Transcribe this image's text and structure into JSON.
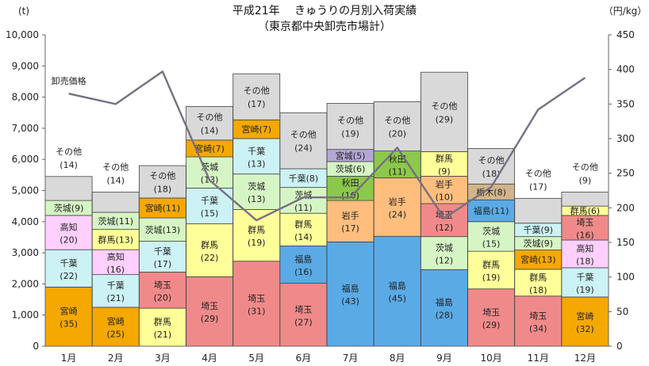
{
  "chart_data": {
    "type": "bar",
    "stacked": true,
    "title": "平成21年　 きゅうりの月別入荷実績",
    "subtitle": "（東京都中央卸売市場計）",
    "ylabel_left": "(t)",
    "ylabel_right": "（円/kg）",
    "ylim_left": [
      0,
      10000
    ],
    "ylim_right": [
      0,
      450
    ],
    "yticks_left": [
      "0",
      "1,000",
      "2,000",
      "3,000",
      "4,000",
      "5,000",
      "6,000",
      "7,000",
      "8,000",
      "9,000",
      "10,000"
    ],
    "yticks_right": [
      "0",
      "50",
      "100",
      "150",
      "200",
      "250",
      "300",
      "350",
      "400",
      "450"
    ],
    "categories": [
      "1月",
      "2月",
      "3月",
      "4月",
      "5月",
      "6月",
      "7月",
      "8月",
      "9月",
      "10月",
      "11月",
      "12月"
    ],
    "colors": {
      "宮崎": "#f5a800",
      "千葉": "#ccf2f5",
      "高知": "#ffd0ff",
      "茨城": "#d6f5c4",
      "群馬": "#ffff99",
      "埼玉": "#f08a8a",
      "福島": "#5aaae6",
      "岩手": "#ffbe7d",
      "秋田": "#8cc84b",
      "栃木": "#d2b48c",
      "その他": "#d9d9d9"
    },
    "months": [
      {
        "total": 5450,
        "segments": [
          {
            "name": "宮崎",
            "pct": "(35)",
            "value": 1900
          },
          {
            "name": "千葉",
            "pct": "(22)",
            "value": 1200
          },
          {
            "name": "高知",
            "pct": "(20)",
            "value": 1100
          },
          {
            "name": "茨城",
            "pct": "(9)",
            "value": 480
          },
          {
            "name": "その他",
            "pct": "(14)",
            "value": 770
          }
        ]
      },
      {
        "total": 4950,
        "segments": [
          {
            "name": "宮崎",
            "pct": "(25)",
            "value": 1250
          },
          {
            "name": "千葉",
            "pct": "(21)",
            "value": 1050
          },
          {
            "name": "高知",
            "pct": "(16)",
            "value": 800
          },
          {
            "name": "群馬",
            "pct": "(13)",
            "value": 650
          },
          {
            "name": "茨城",
            "pct": "(11)",
            "value": 550
          },
          {
            "name": "その他",
            "pct": "(14)",
            "value": 650
          }
        ]
      },
      {
        "total": 5800,
        "segments": [
          {
            "name": "群馬",
            "pct": "(21)",
            "value": 1220
          },
          {
            "name": "埼玉",
            "pct": "(20)",
            "value": 1160
          },
          {
            "name": "千葉",
            "pct": "(17)",
            "value": 990
          },
          {
            "name": "茨城",
            "pct": "(13)",
            "value": 750
          },
          {
            "name": "宮崎",
            "pct": "(11)",
            "value": 640
          },
          {
            "name": "その他",
            "pct": "(18)",
            "value": 1040
          }
        ]
      },
      {
        "total": 7700,
        "segments": [
          {
            "name": "埼玉",
            "pct": "(29)",
            "value": 2230
          },
          {
            "name": "群馬",
            "pct": "(22)",
            "value": 1700
          },
          {
            "name": "千葉",
            "pct": "(15)",
            "value": 1150
          },
          {
            "name": "茨城",
            "pct": "(13)",
            "value": 1000
          },
          {
            "name": "宮崎",
            "pct": "(7)",
            "value": 540
          },
          {
            "name": "その他",
            "pct": "(14)",
            "value": 1080
          }
        ]
      },
      {
        "total": 8750,
        "segments": [
          {
            "name": "埼玉",
            "pct": "(31)",
            "value": 2730
          },
          {
            "name": "群馬",
            "pct": "(19)",
            "value": 1660
          },
          {
            "name": "茨城",
            "pct": "(13)",
            "value": 1140
          },
          {
            "name": "千葉",
            "pct": "(13)",
            "value": 1140
          },
          {
            "name": "宮崎",
            "pct": "(7)",
            "value": 600
          },
          {
            "name": "その他",
            "pct": "(17)",
            "value": 1480
          }
        ]
      },
      {
        "total": 7500,
        "segments": [
          {
            "name": "埼玉",
            "pct": "(27)",
            "value": 2020
          },
          {
            "name": "福島",
            "pct": "(16)",
            "value": 1200
          },
          {
            "name": "群馬",
            "pct": "(14)",
            "value": 1050
          },
          {
            "name": "茨城",
            "pct": "(11)",
            "value": 830
          },
          {
            "name": "千葉",
            "pct": "(8)",
            "value": 600
          },
          {
            "name": "その他",
            "pct": "(24)",
            "value": 1800
          }
        ]
      },
      {
        "total": 7800,
        "segments": [
          {
            "name": "福島",
            "pct": "(43)",
            "value": 3350
          },
          {
            "name": "岩手",
            "pct": "(17)",
            "value": 1330
          },
          {
            "name": "秋田",
            "pct": "(10)",
            "value": 780
          },
          {
            "name": "茨城",
            "pct": "(6)",
            "value": 470
          },
          {
            "name": "宮城",
            "pct": "(5)",
            "value": 390
          },
          {
            "name": "その他",
            "pct": "(19)",
            "value": 1480
          }
        ]
      },
      {
        "total": 7850,
        "segments": [
          {
            "name": "福島",
            "pct": "(45)",
            "value": 3530
          },
          {
            "name": "岩手",
            "pct": "(24)",
            "value": 1880
          },
          {
            "name": "秋田",
            "pct": "(11)",
            "value": 860
          },
          {
            "name": "その他",
            "pct": "(20)",
            "value": 1580
          }
        ]
      },
      {
        "total": 8800,
        "segments": [
          {
            "name": "福島",
            "pct": "(28)",
            "value": 2460
          },
          {
            "name": "茨城",
            "pct": "(12)",
            "value": 1060
          },
          {
            "name": "埼玉",
            "pct": "(12)",
            "value": 1060
          },
          {
            "name": "岩手",
            "pct": "(10)",
            "value": 880
          },
          {
            "name": "群馬",
            "pct": "(9)",
            "value": 790
          },
          {
            "name": "その他",
            "pct": "(29)",
            "value": 2550
          }
        ]
      },
      {
        "total": 6350,
        "segments": [
          {
            "name": "埼玉",
            "pct": "(29)",
            "value": 1840
          },
          {
            "name": "群馬",
            "pct": "(19)",
            "value": 1210
          },
          {
            "name": "茨城",
            "pct": "(15)",
            "value": 950
          },
          {
            "name": "福島",
            "pct": "(11)",
            "value": 700
          },
          {
            "name": "栃木",
            "pct": "(8)",
            "value": 510
          },
          {
            "name": "その他",
            "pct": "(18)",
            "value": 1140
          }
        ]
      },
      {
        "total": 4750,
        "segments": [
          {
            "name": "埼玉",
            "pct": "(34)",
            "value": 1610
          },
          {
            "name": "群馬",
            "pct": "(18)",
            "value": 860
          },
          {
            "name": "宮崎",
            "pct": "(13)",
            "value": 620
          },
          {
            "name": "茨城",
            "pct": "(9)",
            "value": 430
          },
          {
            "name": "千葉",
            "pct": "(9)",
            "value": 430
          },
          {
            "name": "その他",
            "pct": "(17)",
            "value": 800
          }
        ]
      },
      {
        "total": 4950,
        "segments": [
          {
            "name": "宮崎",
            "pct": "(32)",
            "value": 1580
          },
          {
            "name": "千葉",
            "pct": "(19)",
            "value": 940
          },
          {
            "name": "高知",
            "pct": "(18)",
            "value": 890
          },
          {
            "name": "埼玉",
            "pct": "(16)",
            "value": 790
          },
          {
            "name": "群馬",
            "pct": "(6)",
            "value": 300
          },
          {
            "name": "その他",
            "pct": "(9)",
            "value": 450
          }
        ]
      }
    ],
    "price_series": {
      "name": "卸売価格",
      "axis": "right",
      "values": [
        365,
        350,
        397,
        240,
        182,
        215,
        215,
        287,
        185,
        230,
        342,
        388
      ]
    }
  }
}
